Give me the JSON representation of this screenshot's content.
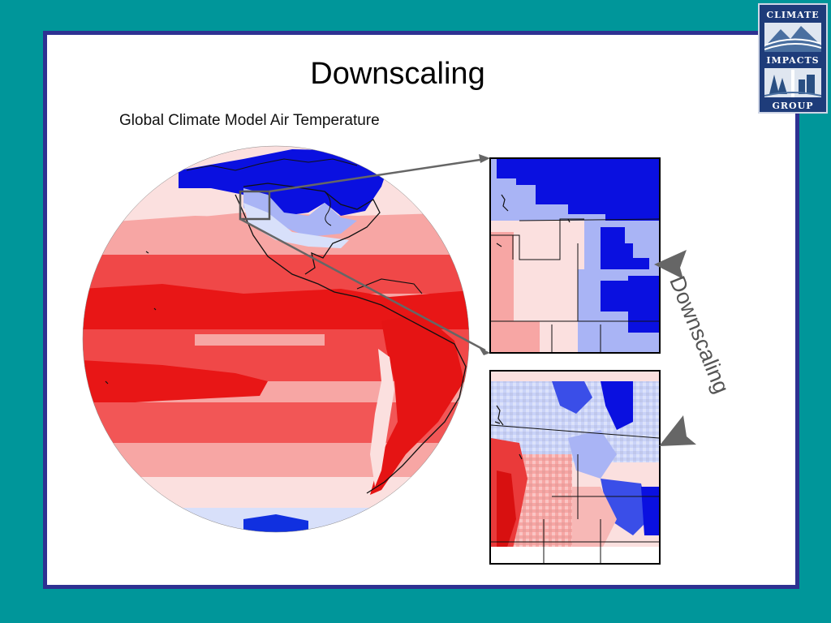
{
  "slide": {
    "title": "Downscaling",
    "subtitle": "Global Climate Model Air Temperature",
    "cycle_label": "Downscaling"
  },
  "logo": {
    "line1": "CLIMATE",
    "line2": "IMPACTS",
    "line3": "GROUP"
  },
  "colors": {
    "background": "#00969a",
    "frame": "#2e3192",
    "cold_dark": "#0010e0",
    "cold_light": "#a9b4f5",
    "neutral": "#fbe0df",
    "warm_light": "#f7a6a4",
    "warm": "#f04040",
    "warm_dark": "#e81616"
  }
}
